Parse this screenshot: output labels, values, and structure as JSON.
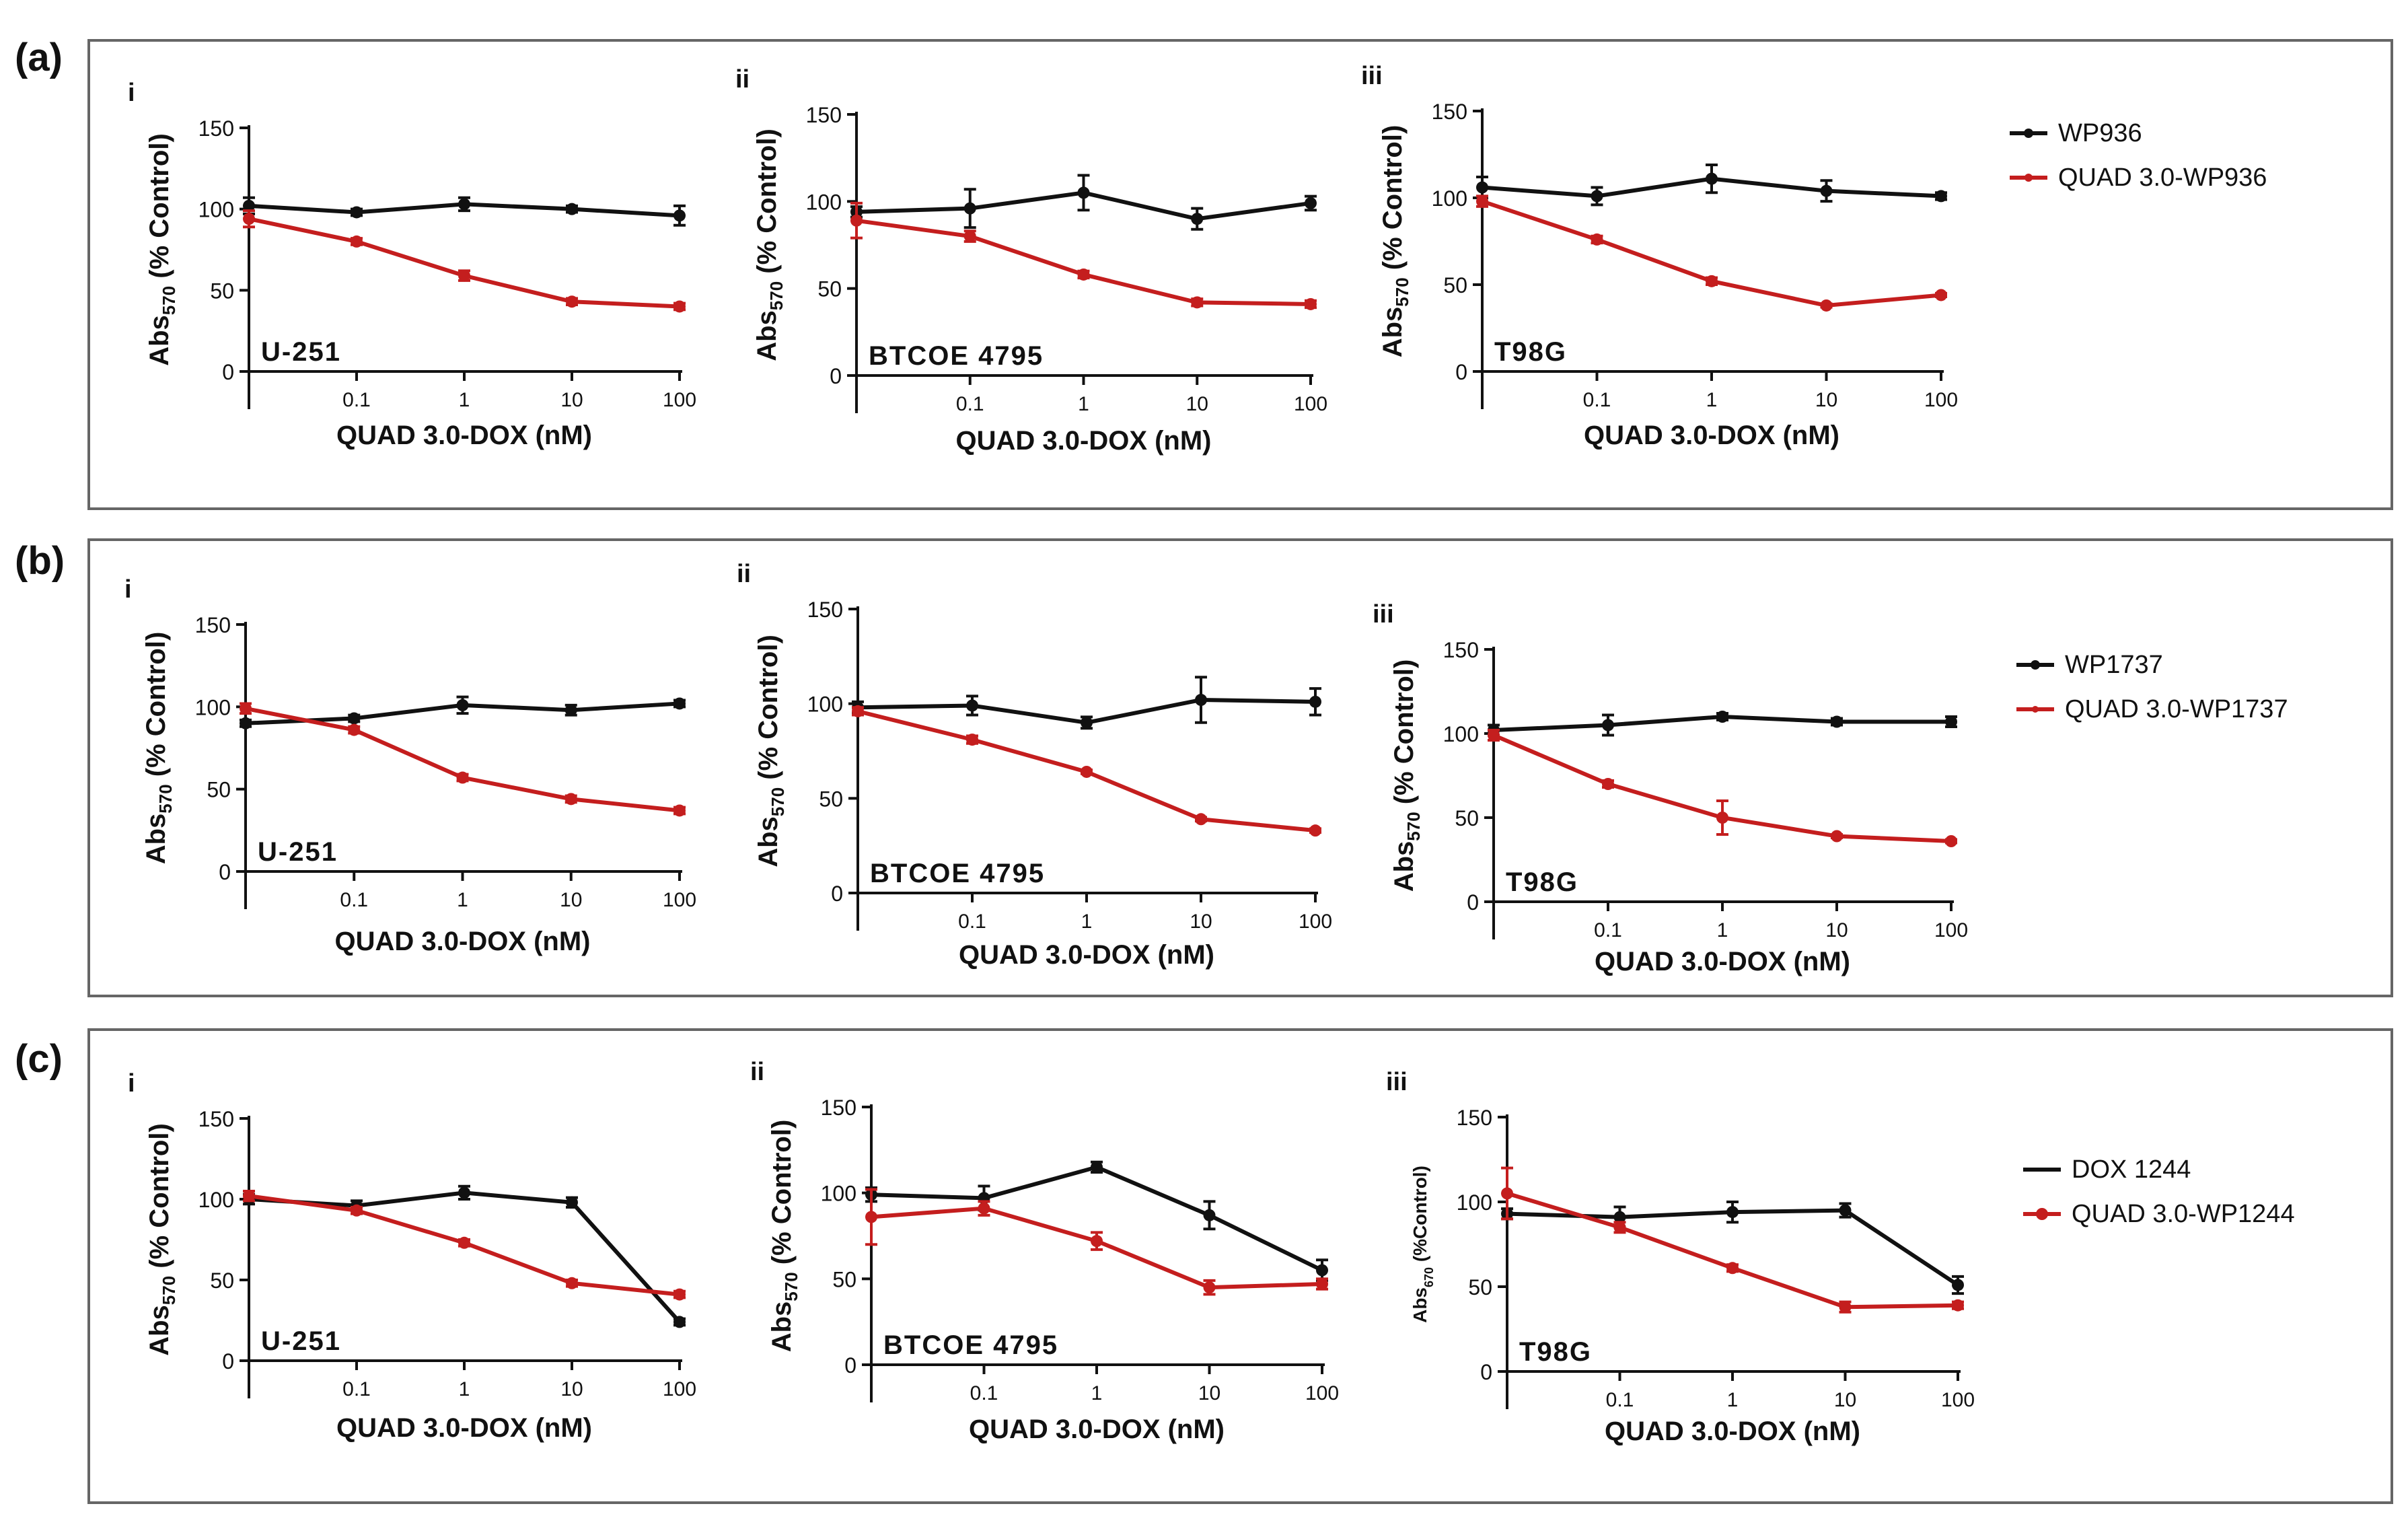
{
  "panels": [
    {
      "label": "(a)",
      "legend": [
        {
          "name": "WP936",
          "color": "#111111"
        },
        {
          "name": "QUAD 3.0-WP936",
          "color": "#c41e1e"
        }
      ]
    },
    {
      "label": "(b)",
      "legend": [
        {
          "name": "WP1737",
          "color": "#111111"
        },
        {
          "name": "QUAD 3.0-WP1737",
          "color": "#c41e1e"
        }
      ]
    },
    {
      "label": "(c)",
      "legend": [
        {
          "name": "DOX 1244",
          "color": "#111111"
        },
        {
          "name": "QUAD 3.0-WP1244",
          "color": "#c41e1e"
        }
      ]
    }
  ],
  "chart_data": [
    {
      "panel": "a",
      "sub": "i",
      "type": "line",
      "cell_line": "U-251",
      "xlabel": "QUAD 3.0-DOX (nM)",
      "ylabel": "Abs570 (% Control)",
      "ylabel_main": "Abs",
      "ylabel_sub": "570",
      "ylabel_rest": " (% Control)",
      "ylim": [
        0,
        150
      ],
      "yticks": [
        "0",
        "50",
        "100",
        "150"
      ],
      "xticks": [
        "0.1",
        "1",
        "10",
        "100"
      ],
      "x": [
        0.01,
        0.1,
        1,
        10,
        100
      ],
      "series": [
        {
          "name": "WP936",
          "color": "#111111",
          "values": [
            102,
            98,
            103,
            100,
            96
          ],
          "errors": [
            5,
            2,
            4,
            2,
            6
          ]
        },
        {
          "name": "QUAD 3.0-WP936",
          "color": "#c41e1e",
          "values": [
            94,
            80,
            59,
            43,
            40
          ],
          "errors": [
            5,
            2,
            3,
            2,
            2
          ]
        }
      ]
    },
    {
      "panel": "a",
      "sub": "ii",
      "type": "line",
      "cell_line": "BTCOE 4795",
      "xlabel": "QUAD 3.0-DOX (nM)",
      "ylabel": "Abs570 (% Control)",
      "ylabel_main": "Abs",
      "ylabel_sub": "570",
      "ylabel_rest": " (% Control)",
      "ylim": [
        0,
        150
      ],
      "yticks": [
        "0",
        "50",
        "100",
        "150"
      ],
      "xticks": [
        "0.1",
        "1",
        "10",
        "100"
      ],
      "x": [
        0.01,
        0.1,
        1,
        10,
        100
      ],
      "series": [
        {
          "name": "WP936",
          "color": "#111111",
          "values": [
            94,
            96,
            105,
            90,
            99
          ],
          "errors": [
            3,
            11,
            10,
            6,
            4
          ]
        },
        {
          "name": "QUAD 3.0-WP936",
          "color": "#c41e1e",
          "values": [
            89,
            80,
            58,
            42,
            41
          ],
          "errors": [
            10,
            3,
            2,
            2,
            2
          ]
        }
      ]
    },
    {
      "panel": "a",
      "sub": "iii",
      "type": "line",
      "cell_line": "T98G",
      "xlabel": "QUAD 3.0-DOX (nM)",
      "ylabel": "Abs570 (% Control)",
      "ylabel_main": "Abs",
      "ylabel_sub": "570",
      "ylabel_rest": " (% Control)",
      "ylim": [
        0,
        150
      ],
      "yticks": [
        "0",
        "50",
        "100",
        "150"
      ],
      "xticks": [
        "0.1",
        "1",
        "10",
        "100"
      ],
      "x": [
        0.01,
        0.1,
        1,
        10,
        100
      ],
      "series": [
        {
          "name": "WP936",
          "color": "#111111",
          "values": [
            106,
            101,
            111,
            104,
            101
          ],
          "errors": [
            6,
            5,
            8,
            6,
            2
          ]
        },
        {
          "name": "QUAD 3.0-WP936",
          "color": "#c41e1e",
          "values": [
            98,
            76,
            52,
            38,
            44
          ],
          "errors": [
            3,
            2,
            2,
            1,
            1
          ]
        }
      ]
    },
    {
      "panel": "b",
      "sub": "i",
      "type": "line",
      "cell_line": "U-251",
      "xlabel": "QUAD 3.0-DOX (nM)",
      "ylabel": "Abs570 (% Control)",
      "ylabel_main": "Abs",
      "ylabel_sub": "570",
      "ylabel_rest": " (% Control)",
      "ylim": [
        0,
        150
      ],
      "yticks": [
        "0",
        "50",
        "100",
        "150"
      ],
      "xticks": [
        "0.1",
        "1",
        "10",
        "100"
      ],
      "x": [
        0.01,
        0.1,
        1,
        10,
        100
      ],
      "series": [
        {
          "name": "WP1737",
          "color": "#111111",
          "values": [
            90,
            93,
            101,
            98,
            102
          ],
          "errors": [
            2,
            2,
            5,
            3,
            2
          ]
        },
        {
          "name": "QUAD 3.0-WP1737",
          "color": "#c41e1e",
          "values": [
            99,
            86,
            57,
            44,
            37
          ],
          "errors": [
            3,
            2,
            2,
            2,
            2
          ]
        }
      ]
    },
    {
      "panel": "b",
      "sub": "ii",
      "type": "line",
      "cell_line": "BTCOE 4795",
      "xlabel": "QUAD 3.0-DOX (nM)",
      "ylabel": "Abs570 (% Control)",
      "ylabel_main": "Abs",
      "ylabel_sub": "570",
      "ylabel_rest": " (% Control)",
      "ylim": [
        0,
        150
      ],
      "yticks": [
        "0",
        "50",
        "100",
        "150"
      ],
      "xticks": [
        "0.1",
        "1",
        "10",
        "100"
      ],
      "x": [
        0.01,
        0.1,
        1,
        10,
        100
      ],
      "series": [
        {
          "name": "WP1737",
          "color": "#111111",
          "values": [
            98,
            99,
            90,
            102,
            101
          ],
          "errors": [
            3,
            5,
            3,
            12,
            7
          ]
        },
        {
          "name": "QUAD 3.0-WP1737",
          "color": "#c41e1e",
          "values": [
            96,
            81,
            64,
            39,
            33
          ],
          "errors": [
            2,
            2,
            1,
            1,
            1
          ]
        }
      ]
    },
    {
      "panel": "b",
      "sub": "iii",
      "type": "line",
      "cell_line": "T98G",
      "xlabel": "QUAD 3.0-DOX (nM)",
      "ylabel": "Abs570 (% Control)",
      "ylabel_main": "Abs",
      "ylabel_sub": "570",
      "ylabel_rest": " (% Control)",
      "ylim": [
        0,
        150
      ],
      "yticks": [
        "0",
        "50",
        "100",
        "150"
      ],
      "xticks": [
        "0.1",
        "1",
        "10",
        "100"
      ],
      "x": [
        0.01,
        0.1,
        1,
        10,
        100
      ],
      "series": [
        {
          "name": "WP1737",
          "color": "#111111",
          "values": [
            102,
            105,
            110,
            107,
            107
          ],
          "errors": [
            3,
            6,
            2,
            2,
            3
          ]
        },
        {
          "name": "QUAD 3.0-WP1737",
          "color": "#c41e1e",
          "values": [
            99,
            70,
            50,
            39,
            36
          ],
          "errors": [
            3,
            2,
            10,
            1,
            1
          ]
        }
      ]
    },
    {
      "panel": "c",
      "sub": "i",
      "type": "line",
      "cell_line": "U-251",
      "xlabel": "QUAD 3.0-DOX (nM)",
      "ylabel": "Abs570 (% Control)",
      "ylabel_main": "Abs",
      "ylabel_sub": "570",
      "ylabel_rest": " (% Control)",
      "ylim": [
        0,
        150
      ],
      "yticks": [
        "0",
        "50",
        "100",
        "150"
      ],
      "xticks": [
        "0.1",
        "1",
        "10",
        "100"
      ],
      "x": [
        0.01,
        0.1,
        1,
        10,
        100
      ],
      "series": [
        {
          "name": "DOX 1244",
          "color": "#111111",
          "values": [
            100,
            96,
            104,
            98,
            24
          ],
          "errors": [
            3,
            3,
            4,
            3,
            2
          ]
        },
        {
          "name": "QUAD 3.0-WP1244",
          "color": "#c41e1e",
          "values": [
            102,
            93,
            73,
            48,
            41
          ],
          "errors": [
            3,
            2,
            2,
            2,
            2
          ]
        }
      ]
    },
    {
      "panel": "c",
      "sub": "ii",
      "type": "line",
      "cell_line": "BTCOE 4795",
      "xlabel": "QUAD 3.0-DOX (nM)",
      "ylabel": "Abs570 (% Control)",
      "ylabel_main": "Abs",
      "ylabel_sub": "570",
      "ylabel_rest": " (% Control)",
      "ylim": [
        0,
        150
      ],
      "yticks": [
        "0",
        "50",
        "100",
        "150"
      ],
      "xticks": [
        "0.1",
        "1",
        "10",
        "100"
      ],
      "x": [
        0.01,
        0.1,
        1,
        10,
        100
      ],
      "series": [
        {
          "name": "DOX 1244",
          "color": "#111111",
          "values": [
            99,
            97,
            115,
            87,
            55
          ],
          "errors": [
            4,
            7,
            3,
            8,
            6
          ]
        },
        {
          "name": "QUAD 3.0-WP1244",
          "color": "#c41e1e",
          "values": [
            86,
            91,
            72,
            45,
            47
          ],
          "errors": [
            16,
            4,
            5,
            4,
            3
          ]
        }
      ]
    },
    {
      "panel": "c",
      "sub": "iii",
      "type": "line",
      "cell_line": "T98G",
      "xlabel": "QUAD 3.0-DOX (nM)",
      "ylabel": "Abs670 (%Control)",
      "ylabel_main": "Abs",
      "ylabel_sub": "670",
      "ylabel_rest": " (%Control)",
      "ylim": [
        0,
        150
      ],
      "yticks": [
        "0",
        "50",
        "100",
        "150"
      ],
      "xticks": [
        "0.1",
        "1",
        "10",
        "100"
      ],
      "x": [
        0.01,
        0.1,
        1,
        10,
        100
      ],
      "series": [
        {
          "name": "DOX 1244",
          "color": "#111111",
          "values": [
            93,
            91,
            94,
            95,
            51
          ],
          "errors": [
            3,
            6,
            6,
            4,
            5
          ]
        },
        {
          "name": "QUAD 3.0-WP1244",
          "color": "#c41e1e",
          "values": [
            105,
            85,
            61,
            38,
            39
          ],
          "errors": [
            15,
            3,
            2,
            3,
            2
          ]
        }
      ]
    }
  ]
}
